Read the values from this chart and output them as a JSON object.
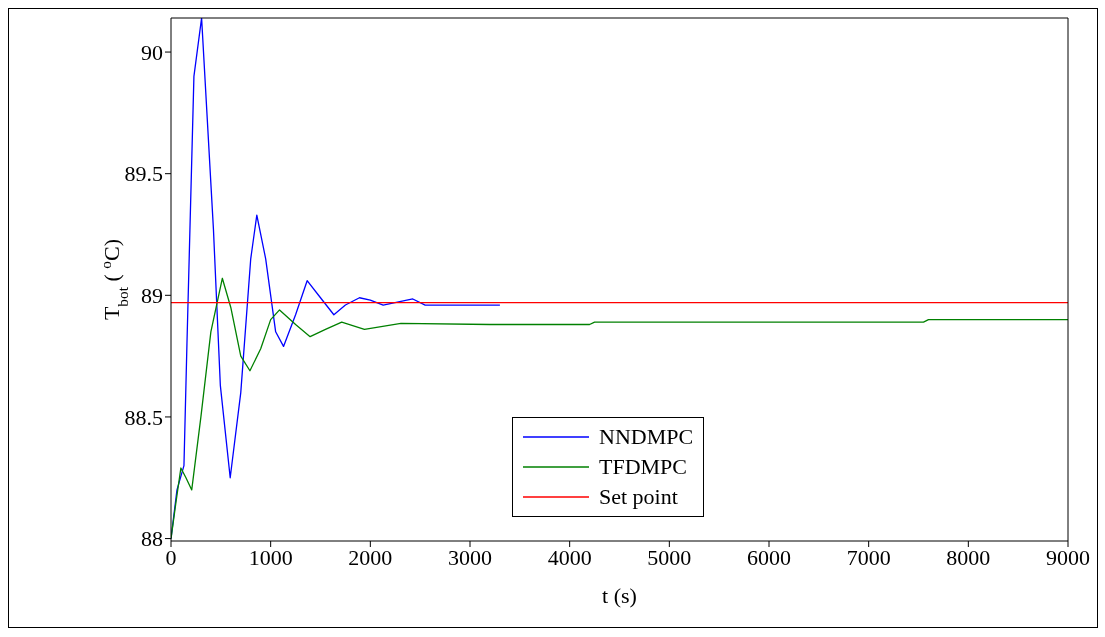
{
  "chart_data": {
    "type": "line",
    "xlabel": "t (s)",
    "ylabel": "T$_{bot}$ ( $^{o}$C)",
    "xlim": [
      0,
      9000
    ],
    "xticks": [
      0,
      1000,
      2000,
      3000,
      4000,
      5000,
      6000,
      7000,
      8000,
      9000
    ],
    "ylim": [
      87.99,
      90.14
    ],
    "yticks": [
      88,
      88.5,
      89,
      89.5,
      90
    ],
    "grid": false,
    "legend": "bottom",
    "marker": "none",
    "line_style": "solid",
    "series": [
      {
        "name": "NNDMPC",
        "color": "#0000ff",
        "x": [
          0,
          60,
          130,
          160,
          230,
          307,
          426,
          495,
          594,
          700,
          800,
          861,
          950,
          1050,
          1129,
          1250,
          1366,
          1500,
          1634,
          1750,
          1891,
          2000,
          2129,
          2426,
          2550,
          2800,
          3300
        ],
        "values": [
          88,
          88.2,
          88.3,
          88.8,
          89.9,
          90.14,
          89.27,
          88.63,
          88.25,
          88.6,
          89.15,
          89.33,
          89.15,
          88.85,
          88.79,
          88.92,
          89.06,
          88.99,
          88.92,
          88.96,
          88.99,
          88.98,
          88.96,
          88.985,
          88.96,
          88.96,
          88.96
        ]
      },
      {
        "name": "TFDMPC",
        "color": "#008000",
        "x": [
          0,
          50,
          99,
          150,
          208,
          300,
          400,
          515,
          600,
          700,
          792,
          900,
          1000,
          1089,
          1250,
          1396,
          1550,
          1713,
          1941,
          2307,
          3200,
          4200,
          4250,
          7550,
          7600,
          9000
        ],
        "values": [
          88,
          88.15,
          88.29,
          88.25,
          88.2,
          88.5,
          88.85,
          89.07,
          88.95,
          88.75,
          88.69,
          88.78,
          88.9,
          88.94,
          88.88,
          88.83,
          88.86,
          88.89,
          88.86,
          88.885,
          88.88,
          88.88,
          88.89,
          88.89,
          88.9,
          88.9
        ]
      },
      {
        "name": "Set point",
        "color": "#ff0000",
        "x": [
          0,
          9000
        ],
        "values": [
          88.97,
          88.97
        ]
      }
    ]
  }
}
